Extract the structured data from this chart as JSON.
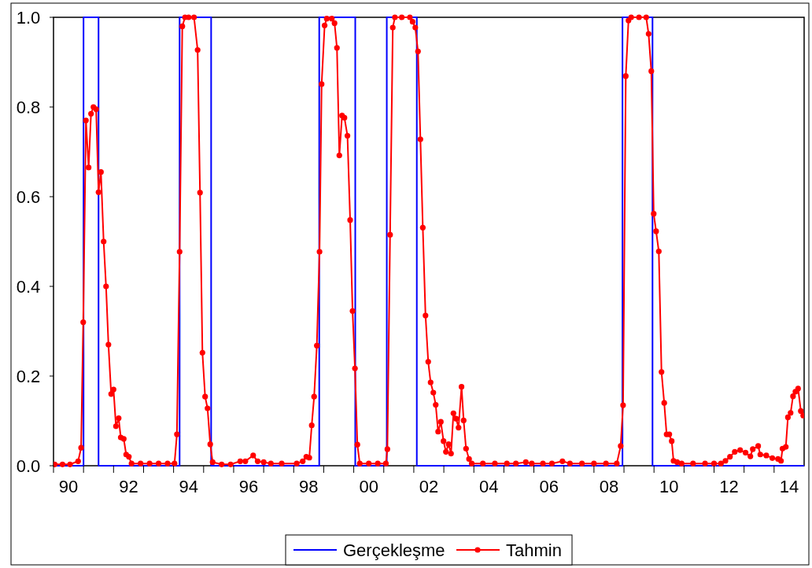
{
  "chart_data": {
    "type": "line",
    "xlim": [
      1989.5,
      2014.5
    ],
    "ylim": [
      0,
      1
    ],
    "xticks": [
      {
        "value": 1989.5,
        "label": null
      },
      {
        "value": 1990,
        "label": "90"
      },
      {
        "value": 1990.5,
        "label": null
      },
      {
        "value": 1991.5,
        "label": null
      },
      {
        "value": 1992,
        "label": "92"
      },
      {
        "value": 1992.5,
        "label": null
      },
      {
        "value": 1993.5,
        "label": null
      },
      {
        "value": 1994,
        "label": "94"
      },
      {
        "value": 1994.5,
        "label": null
      },
      {
        "value": 1995.5,
        "label": null
      },
      {
        "value": 1996,
        "label": "96"
      },
      {
        "value": 1996.5,
        "label": null
      },
      {
        "value": 1997.5,
        "label": null
      },
      {
        "value": 1998,
        "label": "98"
      },
      {
        "value": 1998.5,
        "label": null
      },
      {
        "value": 1999.5,
        "label": null
      },
      {
        "value": 2000,
        "label": "00"
      },
      {
        "value": 2000.5,
        "label": null
      },
      {
        "value": 2001.5,
        "label": null
      },
      {
        "value": 2002,
        "label": "02"
      },
      {
        "value": 2002.5,
        "label": null
      },
      {
        "value": 2003.5,
        "label": null
      },
      {
        "value": 2004,
        "label": "04"
      },
      {
        "value": 2004.5,
        "label": null
      },
      {
        "value": 2005.5,
        "label": null
      },
      {
        "value": 2006,
        "label": "06"
      },
      {
        "value": 2006.5,
        "label": null
      },
      {
        "value": 2007.5,
        "label": null
      },
      {
        "value": 2008,
        "label": "08"
      },
      {
        "value": 2008.5,
        "label": null
      },
      {
        "value": 2009.5,
        "label": null
      },
      {
        "value": 2010,
        "label": "10"
      },
      {
        "value": 2010.5,
        "label": null
      },
      {
        "value": 2011.5,
        "label": null
      },
      {
        "value": 2012,
        "label": "12"
      },
      {
        "value": 2012.5,
        "label": null
      },
      {
        "value": 2013.5,
        "label": null
      },
      {
        "value": 2014,
        "label": "14"
      }
    ],
    "yticks": [
      {
        "value": 0,
        "label": "0.0"
      },
      {
        "value": 0.2,
        "label": "0.2"
      },
      {
        "value": 0.4,
        "label": "0.4"
      },
      {
        "value": 0.6,
        "label": "0.6"
      },
      {
        "value": 0.8,
        "label": "0.8"
      },
      {
        "value": 1,
        "label": "1.0"
      }
    ],
    "grid": false,
    "legend": "bottom",
    "line_style": "solid",
    "series": [
      {
        "name": "Gerçekleşme",
        "color": "#0000ff",
        "marker": "none",
        "x": [
          1989.5,
          1990.5,
          1990.5,
          1991,
          1991,
          1993.7,
          1993.7,
          1994.75,
          1994.75,
          1998.35,
          1998.35,
          1999.55,
          1999.55,
          2000.6,
          2000.6,
          2001.6,
          2001.6,
          2008.45,
          2008.45,
          2009.45,
          2009.45,
          2014.5
        ],
        "values": [
          0,
          0,
          1,
          1,
          0,
          0,
          1,
          1,
          0,
          0,
          1,
          1,
          0,
          0,
          1,
          1,
          0,
          0,
          1,
          1,
          0,
          0
        ]
      },
      {
        "name": "Tahmin",
        "color": "#ff0000",
        "marker": "circle",
        "x": [
          1989.54,
          1989.8,
          1990.05,
          1990.32,
          1990.42,
          1990.49,
          1990.58,
          1990.67,
          1990.75,
          1990.83,
          1990.92,
          1991.0,
          1991.08,
          1991.17,
          1991.25,
          1991.33,
          1991.42,
          1991.5,
          1991.58,
          1991.67,
          1991.74,
          1991.84,
          1991.92,
          1992.01,
          1992.1,
          1992.4,
          1992.7,
          1993.0,
          1993.3,
          1993.53,
          1993.61,
          1993.7,
          1993.79,
          1993.88,
          1994.0,
          1994.18,
          1994.3,
          1994.38,
          1994.46,
          1994.55,
          1994.63,
          1994.72,
          1994.8,
          1995.1,
          1995.4,
          1995.72,
          1995.89,
          1996.15,
          1996.3,
          1996.5,
          1996.74,
          1997.1,
          1997.6,
          1997.8,
          1997.92,
          1998.02,
          1998.1,
          1998.18,
          1998.27,
          1998.36,
          1998.43,
          1998.53,
          1998.6,
          1998.77,
          1998.86,
          1998.94,
          1999.02,
          1999.11,
          1999.19,
          1999.29,
          1999.38,
          1999.46,
          1999.54,
          1999.62,
          1999.7,
          2000.0,
          2000.3,
          2000.57,
          2000.62,
          2000.71,
          2000.8,
          2000.87,
          2001.1,
          2001.37,
          2001.46,
          2001.55,
          2001.64,
          2001.72,
          2001.8,
          2001.89,
          2001.98,
          2002.06,
          2002.15,
          2002.23,
          2002.31,
          2002.4,
          2002.49,
          2002.57,
          2002.66,
          2002.74,
          2002.82,
          2002.91,
          2002.99,
          2003.09,
          2003.16,
          2003.24,
          2003.34,
          2003.43,
          2003.8,
          2004.2,
          2004.6,
          2004.9,
          2005.23,
          2005.43,
          2005.8,
          2006.1,
          2006.45,
          2006.7,
          2007.1,
          2007.5,
          2007.9,
          2008.26,
          2008.39,
          2008.47,
          2008.56,
          2008.65,
          2008.74,
          2009.0,
          2009.24,
          2009.32,
          2009.41,
          2009.49,
          2009.57,
          2009.66,
          2009.75,
          2009.84,
          2009.92,
          2010.01,
          2010.09,
          2010.15,
          2010.27,
          2010.42,
          2010.8,
          2011.2,
          2011.5,
          2011.73,
          2011.88,
          2012.03,
          2012.19,
          2012.37,
          2012.55,
          2012.71,
          2012.79,
          2012.97,
          2013.04,
          2013.24,
          2013.44,
          2013.63,
          2013.73,
          2013.78,
          2013.89,
          2013.96,
          2014.05,
          2014.13,
          2014.21,
          2014.3,
          2014.39,
          2014.47
        ],
        "values": [
          0.003,
          0.003,
          0.003,
          0.01,
          0.04,
          0.32,
          0.77,
          0.665,
          0.785,
          0.8,
          0.795,
          0.61,
          0.655,
          0.5,
          0.4,
          0.27,
          0.16,
          0.17,
          0.088,
          0.106,
          0.063,
          0.06,
          0.025,
          0.02,
          0.005,
          0.005,
          0.005,
          0.005,
          0.005,
          0.005,
          0.07,
          0.477,
          0.98,
          1.0,
          1.0,
          1.0,
          0.927,
          0.609,
          0.252,
          0.154,
          0.128,
          0.048,
          0.008,
          0.003,
          0.003,
          0.01,
          0.01,
          0.023,
          0.01,
          0.008,
          0.005,
          0.005,
          0.005,
          0.01,
          0.02,
          0.018,
          0.09,
          0.154,
          0.268,
          0.477,
          0.851,
          0.982,
          0.997,
          0.997,
          0.987,
          0.932,
          0.692,
          0.781,
          0.776,
          0.736,
          0.548,
          0.345,
          0.217,
          0.047,
          0.005,
          0.005,
          0.005,
          0.005,
          0.037,
          0.515,
          0.977,
          1.0,
          1.0,
          1.0,
          0.99,
          0.977,
          0.924,
          0.728,
          0.531,
          0.335,
          0.232,
          0.186,
          0.163,
          0.136,
          0.076,
          0.098,
          0.055,
          0.031,
          0.048,
          0.027,
          0.117,
          0.105,
          0.085,
          0.176,
          0.101,
          0.038,
          0.015,
          0.005,
          0.005,
          0.005,
          0.005,
          0.005,
          0.008,
          0.005,
          0.005,
          0.005,
          0.01,
          0.005,
          0.005,
          0.005,
          0.005,
          0.005,
          0.044,
          0.135,
          0.869,
          0.993,
          1.0,
          1.0,
          1.0,
          0.963,
          0.88,
          0.562,
          0.523,
          0.478,
          0.209,
          0.14,
          0.07,
          0.07,
          0.055,
          0.011,
          0.008,
          0.005,
          0.005,
          0.005,
          0.005,
          0.005,
          0.011,
          0.02,
          0.031,
          0.035,
          0.029,
          0.021,
          0.037,
          0.044,
          0.025,
          0.023,
          0.017,
          0.015,
          0.011,
          0.038,
          0.042,
          0.108,
          0.118,
          0.155,
          0.165,
          0.172,
          0.122,
          0.112
        ]
      }
    ]
  }
}
